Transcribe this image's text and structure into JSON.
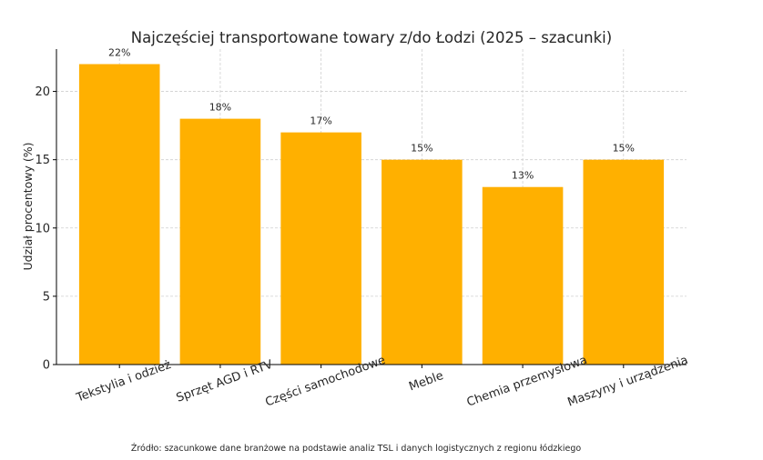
{
  "chart_data": {
    "type": "bar",
    "title": "Najczęściej transportowane towary z/do Łodzi (2025 – szacunki)",
    "xlabel": "",
    "ylabel": "Udział procentowy (%)",
    "categories": [
      "Tekstylia i odzież",
      "Sprzęt AGD i RTV",
      "Części samochodowe",
      "Meble",
      "Chemia przemysłowa",
      "Maszyny i urządzenia"
    ],
    "values": [
      22,
      18,
      17,
      15,
      13,
      15
    ],
    "data_labels": [
      "22%",
      "18%",
      "17%",
      "15%",
      "13%",
      "15%"
    ],
    "yticks": [
      0,
      5,
      10,
      15,
      20
    ],
    "ylim": [
      0,
      23.1
    ],
    "grid": true,
    "bar_color": "#FFB000",
    "source_note": "Źródło: szacunkowe dane branżowe na podstawie analiz TSL i danych logistycznych z regionu łódzkiego"
  }
}
